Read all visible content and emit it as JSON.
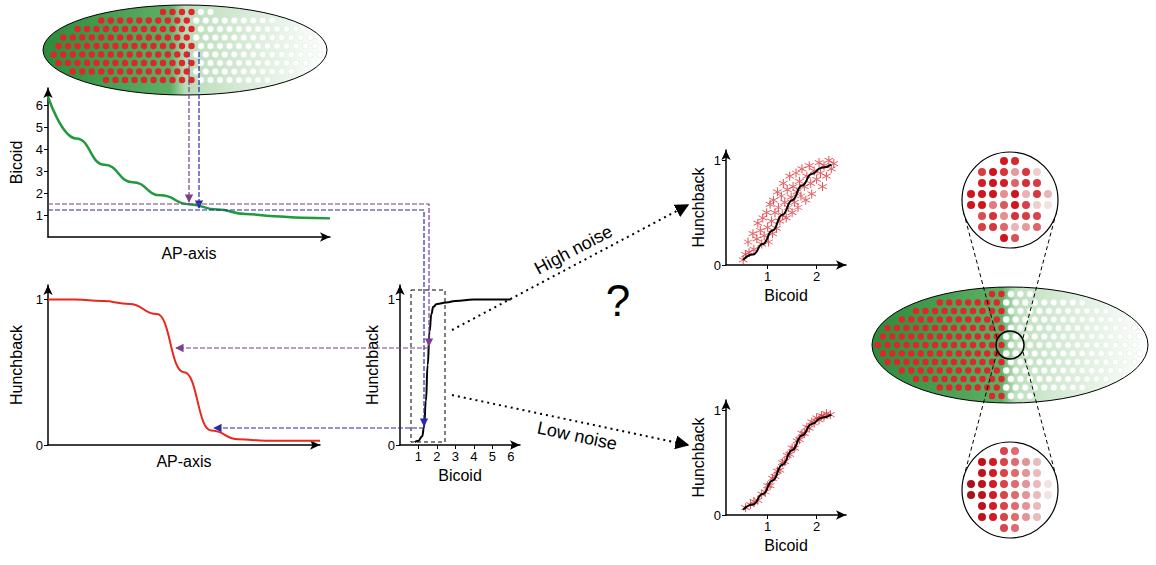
{
  "chart_data": [
    {
      "type": "line",
      "x_label": "AP-axis",
      "y_label": "Bicoid",
      "color": "#1f9a3c",
      "x": [
        0,
        1,
        2,
        3,
        4,
        5,
        6,
        7,
        8,
        9,
        10
      ],
      "values": [
        6.4,
        4.5,
        3.3,
        2.5,
        1.9,
        1.5,
        1.25,
        1.05,
        0.95,
        0.88,
        0.85
      ],
      "xlim": [
        0,
        10
      ],
      "ylim": [
        0,
        6.8
      ],
      "yticks": [
        1,
        2,
        3,
        4,
        5,
        6
      ],
      "tick_labels": "y"
    },
    {
      "type": "line",
      "x_label": "AP-axis",
      "y_label": "Hunchback",
      "color": "#e8281f",
      "x": [
        0,
        1,
        2,
        3,
        4,
        5,
        6,
        7,
        8,
        9,
        10
      ],
      "values": [
        1.0,
        1.0,
        0.99,
        0.97,
        0.9,
        0.5,
        0.1,
        0.04,
        0.03,
        0.03,
        0.03
      ],
      "xlim": [
        0,
        10
      ],
      "ylim": [
        0,
        1.1
      ],
      "yticks": [
        0,
        1
      ],
      "tick_labels": "y"
    },
    {
      "type": "line",
      "x_label": "Bicoid",
      "y_label": "Hunchback",
      "color": "#000000",
      "x": [
        0.8,
        1.0,
        1.2,
        1.3,
        1.4,
        1.5,
        1.6,
        1.7,
        1.8,
        2.0,
        2.5,
        3,
        4,
        5,
        6
      ],
      "values": [
        0.02,
        0.03,
        0.06,
        0.12,
        0.3,
        0.55,
        0.78,
        0.9,
        0.95,
        0.97,
        0.98,
        0.99,
        1.0,
        1.0,
        1.0
      ],
      "xlim": [
        0,
        6.5
      ],
      "ylim": [
        0,
        1.1
      ],
      "xticks": [
        1,
        2,
        3,
        4,
        5,
        6
      ],
      "yticks": [
        0,
        1
      ]
    },
    {
      "type": "scatter",
      "x_label": "Bicoid",
      "y_label": "Hunchback",
      "xlim": [
        0.15,
        2.6
      ],
      "ylim": [
        0,
        1.1
      ],
      "xticks": [
        1,
        2
      ],
      "yticks": [
        0,
        1
      ],
      "series": [
        {
          "type": "line",
          "color": "#000000",
          "x": [
            0.5,
            0.7,
            0.9,
            1.1,
            1.3,
            1.5,
            1.7,
            1.9,
            2.1,
            2.3
          ],
          "values": [
            0.05,
            0.1,
            0.2,
            0.33,
            0.48,
            0.62,
            0.76,
            0.87,
            0.93,
            0.96
          ]
        },
        {
          "type": "scatter",
          "color": "#d9262a",
          "marker": "asterisk",
          "x": [
            0.5,
            0.55,
            0.6,
            0.62,
            0.7,
            0.72,
            0.78,
            0.8,
            0.85,
            0.88,
            0.9,
            0.93,
            0.98,
            1.0,
            1.02,
            1.05,
            1.08,
            1.1,
            1.12,
            1.15,
            1.18,
            1.2,
            1.22,
            1.25,
            1.28,
            1.3,
            1.32,
            1.35,
            1.38,
            1.4,
            1.42,
            1.45,
            1.48,
            1.5,
            1.52,
            1.55,
            1.58,
            1.6,
            1.62,
            1.65,
            1.68,
            1.7,
            1.75,
            1.78,
            1.8,
            1.85,
            1.88,
            1.9,
            1.95,
            2.0,
            2.05,
            2.08,
            2.12,
            2.15,
            2.2,
            2.25,
            2.3,
            2.35
          ],
          "values": [
            0.05,
            0.1,
            0.22,
            0.12,
            0.3,
            0.15,
            0.25,
            0.4,
            0.33,
            0.2,
            0.45,
            0.28,
            0.5,
            0.36,
            0.22,
            0.58,
            0.42,
            0.3,
            0.62,
            0.5,
            0.35,
            0.7,
            0.55,
            0.42,
            0.66,
            0.48,
            0.78,
            0.6,
            0.45,
            0.72,
            0.55,
            0.85,
            0.65,
            0.5,
            0.75,
            0.6,
            0.88,
            0.7,
            0.55,
            0.8,
            0.66,
            0.92,
            0.75,
            0.62,
            0.85,
            0.95,
            0.78,
            0.68,
            0.9,
            0.82,
            0.98,
            0.88,
            0.75,
            0.95,
            0.85,
            1.0,
            0.92,
            0.97
          ]
        }
      ]
    },
    {
      "type": "scatter",
      "x_label": "Bicoid",
      "y_label": "Hunchback",
      "xlim": [
        0.15,
        2.6
      ],
      "ylim": [
        0,
        1.1
      ],
      "xticks": [
        1,
        2
      ],
      "yticks": [
        0,
        1
      ],
      "series": [
        {
          "type": "line",
          "color": "#000000",
          "x": [
            0.5,
            0.7,
            0.9,
            1.1,
            1.3,
            1.5,
            1.7,
            1.9,
            2.1,
            2.3
          ],
          "values": [
            0.05,
            0.1,
            0.2,
            0.33,
            0.48,
            0.62,
            0.76,
            0.87,
            0.93,
            0.96
          ]
        },
        {
          "type": "scatter",
          "color": "#d9262a",
          "marker": "asterisk",
          "x": [
            0.55,
            0.65,
            0.72,
            0.8,
            0.88,
            0.95,
            1.0,
            1.05,
            1.1,
            1.15,
            1.2,
            1.25,
            1.3,
            1.35,
            1.4,
            1.45,
            1.5,
            1.55,
            1.6,
            1.65,
            1.7,
            1.75,
            1.8,
            1.85,
            1.9,
            1.95,
            2.0,
            2.05,
            2.1,
            2.15,
            2.2,
            2.28
          ],
          "values": [
            0.07,
            0.1,
            0.13,
            0.14,
            0.2,
            0.22,
            0.28,
            0.28,
            0.35,
            0.37,
            0.42,
            0.43,
            0.5,
            0.51,
            0.57,
            0.58,
            0.64,
            0.64,
            0.71,
            0.72,
            0.78,
            0.78,
            0.84,
            0.83,
            0.89,
            0.88,
            0.93,
            0.91,
            0.95,
            0.94,
            0.97,
            0.96
          ]
        }
      ]
    }
  ],
  "annotations": {
    "question": "?",
    "high_noise": "High noise",
    "low_noise": "Low noise"
  }
}
